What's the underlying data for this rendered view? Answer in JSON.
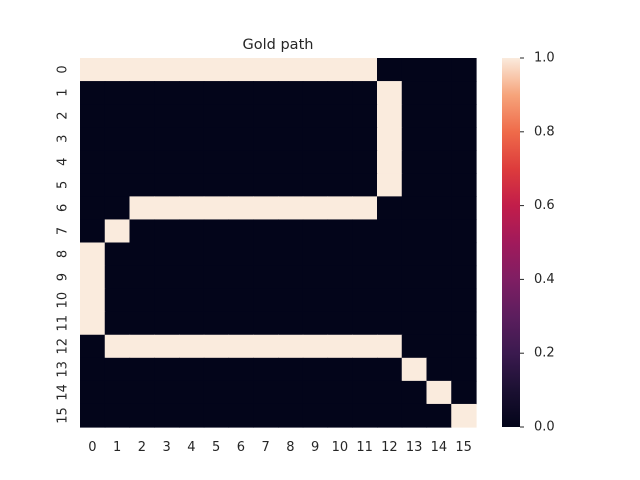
{
  "chart_data": {
    "type": "heatmap",
    "title": "Gold path",
    "xlabel": "",
    "ylabel": "",
    "x_labels": [
      "0",
      "1",
      "2",
      "3",
      "4",
      "5",
      "6",
      "7",
      "8",
      "9",
      "10",
      "11",
      "12",
      "13",
      "14",
      "15"
    ],
    "y_labels": [
      "0",
      "1",
      "2",
      "3",
      "4",
      "5",
      "6",
      "7",
      "8",
      "9",
      "10",
      "11",
      "12",
      "13",
      "14",
      "15"
    ],
    "vmin": 0.0,
    "vmax": 1.0,
    "colormap": "rocket",
    "colorbar_ticks": [
      "0.0",
      "0.2",
      "0.4",
      "0.6",
      "0.8",
      "1.0"
    ],
    "values": [
      [
        1,
        1,
        1,
        1,
        1,
        1,
        1,
        1,
        1,
        1,
        1,
        1,
        0,
        0,
        0,
        0
      ],
      [
        0,
        0,
        0,
        0,
        0,
        0,
        0,
        0,
        0,
        0,
        0,
        0,
        1,
        0,
        0,
        0
      ],
      [
        0,
        0,
        0,
        0,
        0,
        0,
        0,
        0,
        0,
        0,
        0,
        0,
        1,
        0,
        0,
        0
      ],
      [
        0,
        0,
        0,
        0,
        0,
        0,
        0,
        0,
        0,
        0,
        0,
        0,
        1,
        0,
        0,
        0
      ],
      [
        0,
        0,
        0,
        0,
        0,
        0,
        0,
        0,
        0,
        0,
        0,
        0,
        1,
        0,
        0,
        0
      ],
      [
        0,
        0,
        0,
        0,
        0,
        0,
        0,
        0,
        0,
        0,
        0,
        0,
        1,
        0,
        0,
        0
      ],
      [
        0,
        0,
        1,
        1,
        1,
        1,
        1,
        1,
        1,
        1,
        1,
        1,
        0,
        0,
        0,
        0
      ],
      [
        0,
        1,
        0,
        0,
        0,
        0,
        0,
        0,
        0,
        0,
        0,
        0,
        0,
        0,
        0,
        0
      ],
      [
        1,
        0,
        0,
        0,
        0,
        0,
        0,
        0,
        0,
        0,
        0,
        0,
        0,
        0,
        0,
        0
      ],
      [
        1,
        0,
        0,
        0,
        0,
        0,
        0,
        0,
        0,
        0,
        0,
        0,
        0,
        0,
        0,
        0
      ],
      [
        1,
        0,
        0,
        0,
        0,
        0,
        0,
        0,
        0,
        0,
        0,
        0,
        0,
        0,
        0,
        0
      ],
      [
        1,
        0,
        0,
        0,
        0,
        0,
        0,
        0,
        0,
        0,
        0,
        0,
        0,
        0,
        0,
        0
      ],
      [
        0,
        1,
        1,
        1,
        1,
        1,
        1,
        1,
        1,
        1,
        1,
        1,
        1,
        0,
        0,
        0
      ],
      [
        0,
        0,
        0,
        0,
        0,
        0,
        0,
        0,
        0,
        0,
        0,
        0,
        0,
        1,
        0,
        0
      ],
      [
        0,
        0,
        0,
        0,
        0,
        0,
        0,
        0,
        0,
        0,
        0,
        0,
        0,
        0,
        1,
        0
      ],
      [
        0,
        0,
        0,
        0,
        0,
        0,
        0,
        0,
        0,
        0,
        0,
        0,
        0,
        0,
        0,
        1
      ]
    ],
    "colors": {
      "low": "#03051a",
      "high": "#faebdd"
    }
  }
}
